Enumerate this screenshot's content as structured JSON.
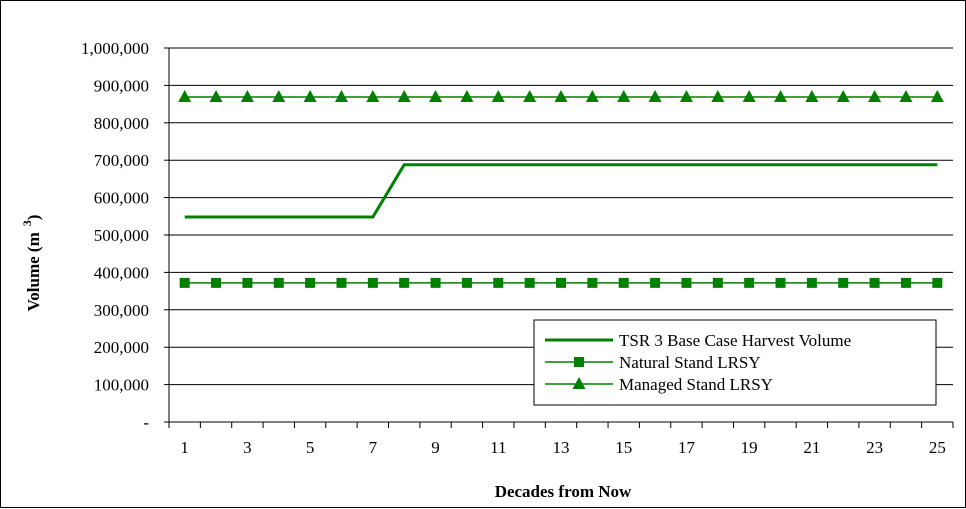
{
  "chart_data": {
    "type": "line",
    "title": "",
    "xlabel": "Decades from Now",
    "ylabel": "Volume (m",
    "ylabel_sup": "3",
    "ylabel_close": ")",
    "x": [
      1,
      2,
      3,
      4,
      5,
      6,
      7,
      8,
      9,
      10,
      11,
      12,
      13,
      14,
      15,
      16,
      17,
      18,
      19,
      20,
      21,
      22,
      23,
      24,
      25
    ],
    "x_tick_labels": [
      "1",
      "3",
      "5",
      "7",
      "9",
      "11",
      "13",
      "15",
      "17",
      "19",
      "21",
      "23",
      "25"
    ],
    "y_tick_labels": [
      "-",
      "100,000",
      "200,000",
      "300,000",
      "400,000",
      "500,000",
      "600,000",
      "700,000",
      "800,000",
      "900,000",
      "1,000,000"
    ],
    "ylim": [
      0,
      1000000
    ],
    "grid": "horizontal",
    "legend_position": "bottom-right",
    "series": [
      {
        "name": "TSR 3 Base Case Harvest Volume",
        "marker": "none",
        "color": "#008000",
        "values": [
          548000,
          548000,
          548000,
          548000,
          548000,
          548000,
          548000,
          688000,
          688000,
          688000,
          688000,
          688000,
          688000,
          688000,
          688000,
          688000,
          688000,
          688000,
          688000,
          688000,
          688000,
          688000,
          688000,
          688000,
          688000
        ]
      },
      {
        "name": "Natural Stand LRSY",
        "marker": "square",
        "color": "#008000",
        "values": [
          372000,
          372000,
          372000,
          372000,
          372000,
          372000,
          372000,
          372000,
          372000,
          372000,
          372000,
          372000,
          372000,
          372000,
          372000,
          372000,
          372000,
          372000,
          372000,
          372000,
          372000,
          372000,
          372000,
          372000,
          372000
        ]
      },
      {
        "name": "Managed Stand LRSY",
        "marker": "triangle",
        "color": "#008000",
        "values": [
          869000,
          869000,
          869000,
          869000,
          869000,
          869000,
          869000,
          869000,
          869000,
          869000,
          869000,
          869000,
          869000,
          869000,
          869000,
          869000,
          869000,
          869000,
          869000,
          869000,
          869000,
          869000,
          869000,
          869000,
          869000
        ]
      }
    ]
  }
}
